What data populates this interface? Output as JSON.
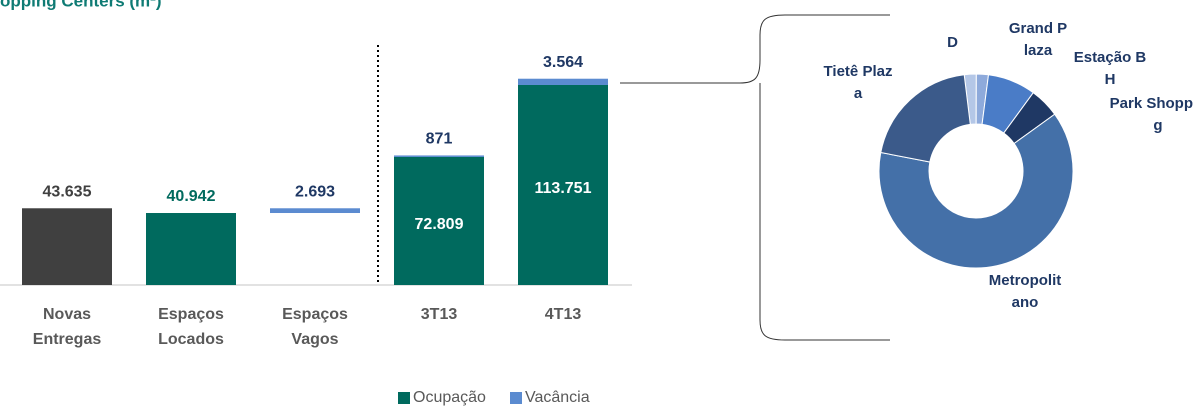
{
  "chart_data": [
    {
      "type": "bar",
      "title": "opping Centers (m²)",
      "stacked": true,
      "categories": [
        "Novas Entregas",
        "Espaços Locados",
        "Espaços Vagos",
        "3T13",
        "4T13"
      ],
      "series": [
        {
          "color": "#404040",
          "label_color": "#404040",
          "values": [
            43635,
            null,
            null,
            null,
            null
          ],
          "value_labels": [
            "43.635",
            null,
            null,
            null,
            null
          ]
        },
        {
          "name": "Ocupação",
          "color": "#006a5e",
          "label_color": "#006a5e",
          "values": [
            null,
            40942,
            null,
            72809,
            113751
          ],
          "value_labels": [
            null,
            "40.942",
            null,
            "72.809",
            "113.751"
          ]
        },
        {
          "name": "Vacância",
          "color": "#5b8bd0",
          "label_color": "#1f3864",
          "values": [
            null,
            null,
            2693,
            871,
            3564
          ],
          "value_labels": [
            null,
            null,
            "2.693",
            "871",
            "3.564"
          ]
        }
      ],
      "ylim": [
        0,
        120000
      ]
    },
    {
      "type": "pie",
      "donut": true,
      "categories": [
        "D",
        "Grand Plaza",
        "Estação BH",
        "Park Shopping",
        "Metropolitano",
        "Tietê Plaza"
      ],
      "values": [
        2,
        2,
        8,
        5,
        63,
        20
      ],
      "colors": [
        "#b4c7e7",
        "#8eaadb",
        "#4a7cc7",
        "#1f3864",
        "#4470a8",
        "#3b5a8a"
      ]
    }
  ]
}
